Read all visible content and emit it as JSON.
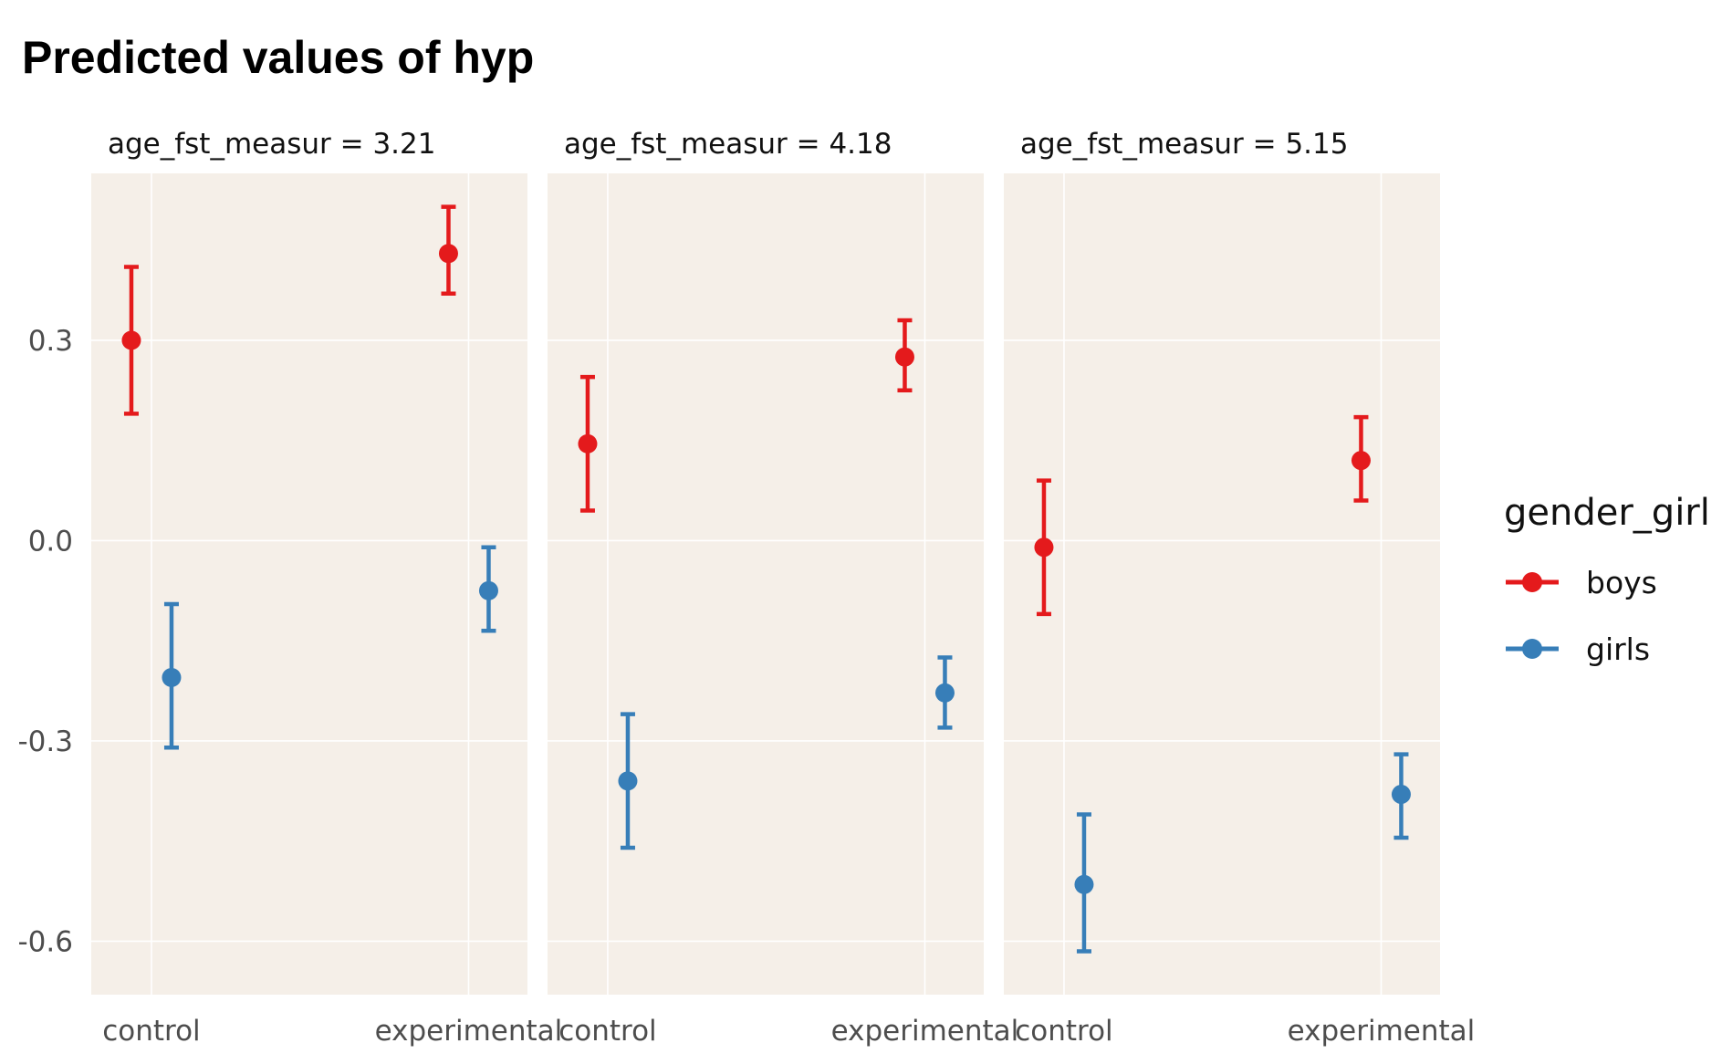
{
  "chart_data": {
    "type": "scatter",
    "title": "Predicted values of hyp",
    "facet_variable": "age_fst_measur",
    "facets": [
      "age_fst_measur = 3.21",
      "age_fst_measur = 4.18",
      "age_fst_measur = 5.15"
    ],
    "categories": [
      "control",
      "experimental"
    ],
    "ylim": [
      -0.68,
      0.55
    ],
    "y_ticks": [
      {
        "value": 0.3,
        "label": "0.3"
      },
      {
        "value": 0.0,
        "label": "0.0"
      },
      {
        "value": -0.3,
        "label": "-0.3"
      },
      {
        "value": -0.6,
        "label": "-0.6"
      }
    ],
    "legend": {
      "title": "gender_girl",
      "position": "right",
      "entries": [
        {
          "name": "boys",
          "color": "#e41a1c"
        },
        {
          "name": "girls",
          "color": "#377eb8"
        }
      ]
    },
    "series": [
      {
        "name": "boys",
        "color": "#e41a1c",
        "panels": [
          [
            {
              "x": "control",
              "y": 0.3,
              "lo": 0.19,
              "hi": 0.41
            },
            {
              "x": "experimental",
              "y": 0.43,
              "lo": 0.37,
              "hi": 0.5
            }
          ],
          [
            {
              "x": "control",
              "y": 0.145,
              "lo": 0.045,
              "hi": 0.245
            },
            {
              "x": "experimental",
              "y": 0.275,
              "lo": 0.225,
              "hi": 0.33
            }
          ],
          [
            {
              "x": "control",
              "y": -0.01,
              "lo": -0.11,
              "hi": 0.09
            },
            {
              "x": "experimental",
              "y": 0.12,
              "lo": 0.06,
              "hi": 0.185
            }
          ]
        ]
      },
      {
        "name": "girls",
        "color": "#377eb8",
        "panels": [
          [
            {
              "x": "control",
              "y": -0.205,
              "lo": -0.31,
              "hi": -0.095
            },
            {
              "x": "experimental",
              "y": -0.075,
              "lo": -0.135,
              "hi": -0.01
            }
          ],
          [
            {
              "x": "control",
              "y": -0.36,
              "lo": -0.46,
              "hi": -0.26
            },
            {
              "x": "experimental",
              "y": -0.228,
              "lo": -0.28,
              "hi": -0.175
            }
          ],
          [
            {
              "x": "control",
              "y": -0.515,
              "lo": -0.615,
              "hi": -0.41
            },
            {
              "x": "experimental",
              "y": -0.38,
              "lo": -0.445,
              "hi": -0.32
            }
          ]
        ]
      }
    ]
  }
}
